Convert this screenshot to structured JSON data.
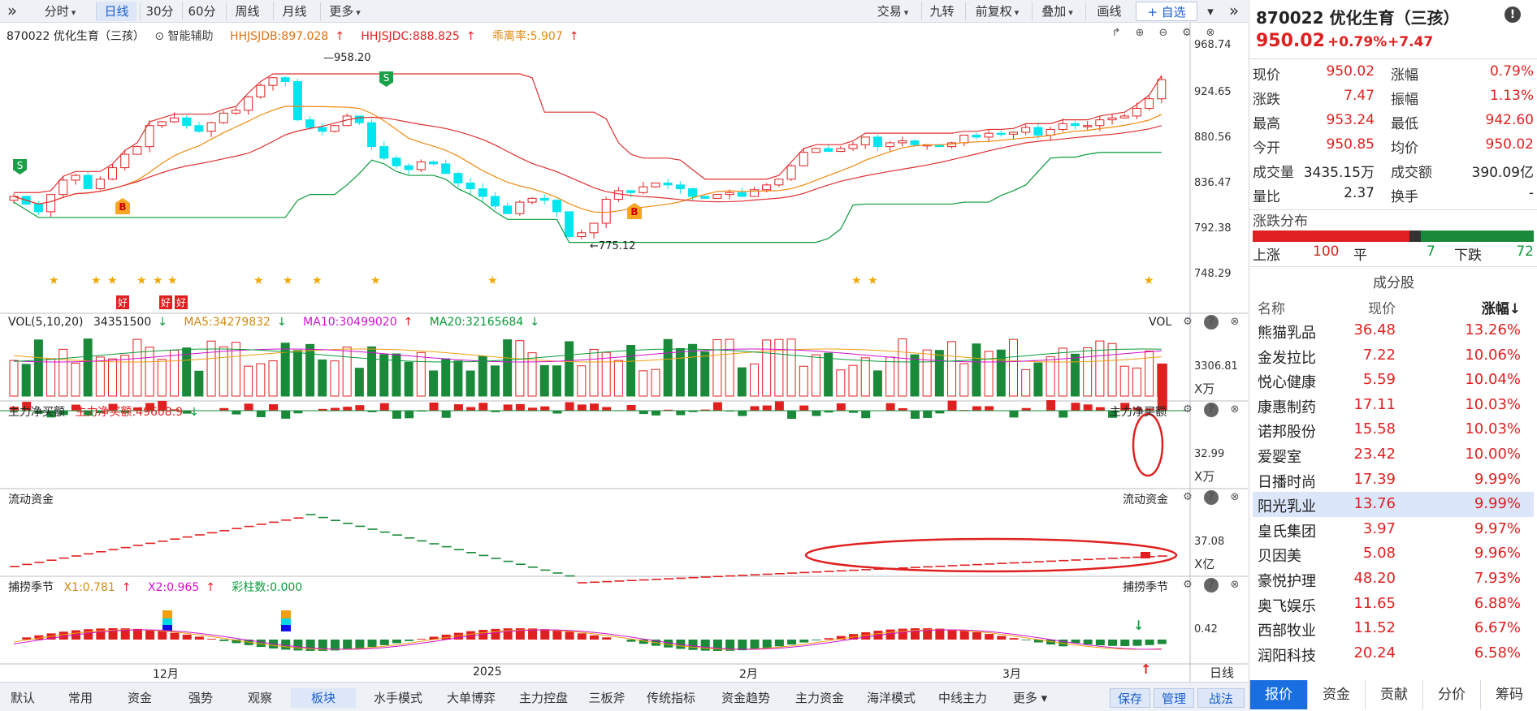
{
  "toolbar": {
    "left": [
      "»",
      "分时",
      "日线",
      "30分",
      "60分",
      "周线",
      "月线",
      "更多"
    ],
    "right": [
      "交易",
      "九转",
      "前复权",
      "叠加",
      "画线",
      "+ 自选",
      "▾",
      "»"
    ]
  },
  "kline": {
    "stock": "870022 优化生育（三孩）",
    "assist": "智能辅助",
    "hhjsjdb": "HHJSJDB:897.028",
    "hhjsjdc": "HHJSJDC:888.825",
    "guaili": "乖离率:5.907",
    "axis": [
      "968.74",
      "924.65",
      "880.56",
      "836.47",
      "792.38",
      "748.29"
    ],
    "high_label": "958.20",
    "low_label": "775.12",
    "signal_s": "S",
    "signal_b": "B",
    "tag_hao": "好"
  },
  "vol": {
    "label": "VOL(5,10,20)",
    "value": "34351500",
    "ma5": "MA5:34279832",
    "ma10": "MA10:30499020",
    "ma20": "MA20:32165684",
    "right_label": "VOL",
    "axis": "3306.81",
    "unit": "X万"
  },
  "main_net": {
    "label": "主力净买额",
    "value": "主力净买额:49608.9",
    "right_label": "主力净买额",
    "axis": "32.99",
    "unit": "X万"
  },
  "flow": {
    "label": "流动资金",
    "right_label": "流动资金",
    "axis": "37.08",
    "unit": "X亿"
  },
  "season": {
    "label": "捕捞季节",
    "x1": "X1:0.781",
    "x2": "X2:0.965",
    "bars": "彩柱数:0.000",
    "right_label": "捕捞季节",
    "axis": "0.42"
  },
  "dates": [
    "12月",
    "2025",
    "2月",
    "3月"
  ],
  "bottom_tabs": [
    "默认",
    "常用",
    "资金",
    "强势",
    "观察",
    "板块",
    "水手模式",
    "大单博弈",
    "主力控盘",
    "三板斧",
    "传统指标",
    "资金趋势",
    "主力资金",
    "海洋模式",
    "中线主力",
    "更多"
  ],
  "bottom_right": [
    "日线",
    "保存",
    "管理",
    "战法"
  ],
  "quote": {
    "title": "870022 优化生育（三孩）",
    "price": "950.02",
    "pct": "+0.79%",
    "chg": "+7.47",
    "rows": [
      [
        "现价",
        "950.02",
        "涨幅",
        "0.79%"
      ],
      [
        "涨跌",
        "7.47",
        "振幅",
        "1.13%"
      ],
      [
        "最高",
        "953.24",
        "最低",
        "942.60"
      ],
      [
        "今开",
        "950.85",
        "均价",
        "950.02"
      ],
      [
        "成交量",
        "3435.15万",
        "成交额",
        "390.09亿"
      ],
      [
        "量比",
        "2.37",
        "换手",
        "-"
      ]
    ],
    "dist_label": "涨跌分布",
    "up_label": "上涨",
    "up": "100",
    "flat_label": "平",
    "flat": "7",
    "down_label": "下跌",
    "down": "72",
    "comp_title": "成分股",
    "comp_headers": [
      "名称",
      "现价",
      "涨幅↓"
    ],
    "components": [
      [
        "熊猫乳品",
        "36.48",
        "13.26%"
      ],
      [
        "金发拉比",
        "7.22",
        "10.06%"
      ],
      [
        "悦心健康",
        "5.59",
        "10.04%"
      ],
      [
        "康惠制药",
        "17.11",
        "10.03%"
      ],
      [
        "诺邦股份",
        "15.58",
        "10.03%"
      ],
      [
        "爱婴室",
        "23.42",
        "10.00%"
      ],
      [
        "日播时尚",
        "17.39",
        "9.99%"
      ],
      [
        "阳光乳业",
        "13.76",
        "9.99%"
      ],
      [
        "皇氏集团",
        "3.97",
        "9.97%"
      ],
      [
        "贝因美",
        "5.08",
        "9.96%"
      ],
      [
        "豪悦护理",
        "48.20",
        "7.93%"
      ],
      [
        "奥飞娱乐",
        "11.65",
        "6.88%"
      ],
      [
        "西部牧业",
        "11.52",
        "6.67%"
      ],
      [
        "润阳科技",
        "20.24",
        "6.58%"
      ]
    ],
    "tabs": [
      "报价",
      "资金",
      "贡献",
      "分价",
      "筹码"
    ]
  }
}
